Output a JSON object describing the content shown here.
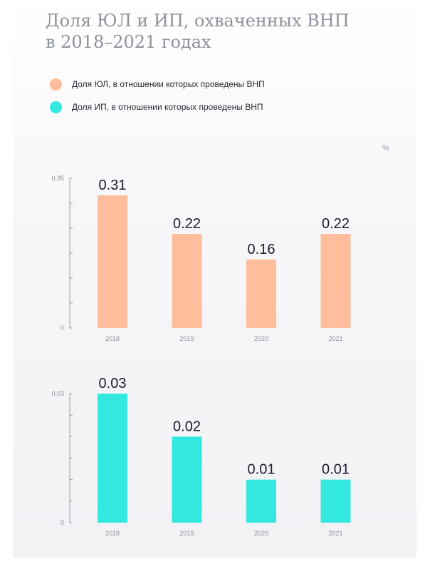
{
  "title_line1": "Доля ЮЛ и ИП, охваченных ВНП",
  "title_line2": "в 2018–2021 годах",
  "unit": "%",
  "colors": {
    "yl": "#ffbd9b",
    "ip": "#33e8de",
    "axis": "#9a9ca8",
    "label": "#1a1a2e",
    "tick": "#8e919c"
  },
  "chart_data": [
    {
      "type": "bar",
      "series": [
        {
          "name": "Доля ЮЛ, в отношении которых проведены ВНП",
          "values": [
            0.31,
            0.22,
            0.16,
            0.22
          ]
        }
      ],
      "categories": [
        "2018",
        "2019",
        "2020",
        "2021"
      ],
      "data_labels": [
        "0.31",
        "0.22",
        "0.16",
        "0.22"
      ],
      "yticks": [
        "0,35",
        "0"
      ],
      "ylim": [
        0,
        0.35
      ]
    },
    {
      "type": "bar",
      "series": [
        {
          "name": "Доля ИП, в отношении которых проведены ВНП",
          "values": [
            0.03,
            0.02,
            0.01,
            0.01
          ]
        }
      ],
      "categories": [
        "2018",
        "2019",
        "2020",
        "2021"
      ],
      "data_labels": [
        "0.03",
        "0.02",
        "0.01",
        "0.01"
      ],
      "yticks": [
        "0,03",
        "0"
      ],
      "ylim": [
        0,
        0.03
      ]
    }
  ]
}
